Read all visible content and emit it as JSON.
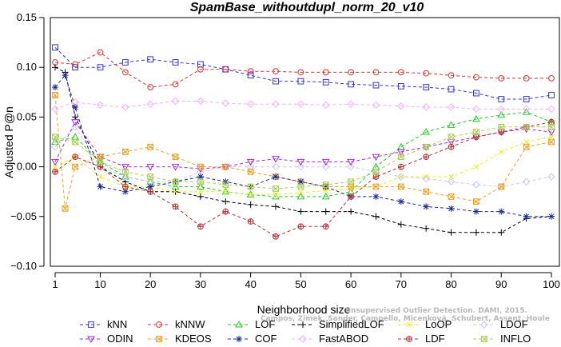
{
  "chart_data": {
    "type": "line",
    "title": "SpamBase_withoutdupl_norm_20_v10",
    "xlabel": "Neighborhood size",
    "ylabel": "Adjusted P@n",
    "xlim": [
      1,
      100
    ],
    "ylim": [
      -0.1,
      0.15
    ],
    "x_ticks": [
      1,
      10,
      20,
      30,
      40,
      50,
      60,
      70,
      80,
      90,
      100
    ],
    "y_ticks": [
      -0.1,
      -0.05,
      0.0,
      0.05,
      0.1,
      0.15
    ],
    "y_tick_labels": [
      "−0.10",
      "−0.05",
      "0.00",
      "0.05",
      "0.10",
      "0.15"
    ],
    "grid": false,
    "legend_position": "bottom",
    "watermark": [
      "Campos, Zimek, Sander, Campello, Micenková, Schubert, Assent, Houle",
      "Unsupervised Outlier Detection. DAMI, 2015."
    ],
    "series": [
      {
        "name": "kNN",
        "color": "#3333ee",
        "marker": "square",
        "x": [
          1,
          5,
          10,
          15,
          20,
          25,
          30,
          35,
          40,
          45,
          50,
          55,
          60,
          65,
          70,
          75,
          80,
          85,
          90,
          95,
          100
        ],
        "y": [
          0.12,
          0.1,
          0.1,
          0.105,
          0.108,
          0.105,
          0.103,
          0.098,
          0.092,
          0.086,
          0.086,
          0.085,
          0.083,
          0.082,
          0.081,
          0.08,
          0.078,
          0.074,
          0.068,
          0.068,
          0.072
        ]
      },
      {
        "name": "kNNW",
        "color": "#dd3333",
        "marker": "circle",
        "x": [
          1,
          5,
          10,
          15,
          20,
          25,
          30,
          35,
          40,
          45,
          50,
          55,
          60,
          65,
          70,
          75,
          80,
          85,
          90,
          95,
          100
        ],
        "y": [
          0.105,
          0.103,
          0.115,
          0.095,
          0.08,
          0.083,
          0.098,
          0.098,
          0.096,
          0.096,
          0.095,
          0.095,
          0.095,
          0.095,
          0.095,
          0.094,
          0.092,
          0.09,
          0.089,
          0.089,
          0.089
        ]
      },
      {
        "name": "LOF",
        "color": "#22cc22",
        "marker": "triangle-up",
        "x": [
          1,
          5,
          10,
          15,
          20,
          25,
          30,
          35,
          40,
          45,
          50,
          55,
          60,
          65,
          70,
          75,
          80,
          85,
          90,
          95,
          100
        ],
        "y": [
          0.025,
          0.03,
          0.005,
          -0.01,
          -0.015,
          -0.02,
          -0.02,
          -0.025,
          -0.028,
          -0.03,
          -0.03,
          -0.03,
          -0.025,
          0.0,
          0.02,
          0.035,
          0.042,
          0.048,
          0.052,
          0.055,
          0.045
        ]
      },
      {
        "name": "SimplifiedLOF",
        "color": "#000000",
        "marker": "plus",
        "x": [
          1,
          3,
          5,
          10,
          15,
          20,
          25,
          30,
          35,
          40,
          45,
          50,
          55,
          60,
          65,
          70,
          75,
          80,
          85,
          90,
          95,
          100
        ],
        "y": [
          0.1,
          0.095,
          0.05,
          0.0,
          -0.015,
          -0.025,
          -0.025,
          -0.03,
          -0.035,
          -0.038,
          -0.04,
          -0.045,
          -0.045,
          -0.045,
          -0.05,
          -0.058,
          -0.062,
          -0.066,
          -0.066,
          -0.066,
          -0.052,
          -0.05
        ]
      },
      {
        "name": "LoOP",
        "color": "#eeee22",
        "marker": "x",
        "x": [
          1,
          5,
          10,
          15,
          20,
          25,
          30,
          35,
          40,
          45,
          50,
          55,
          60,
          65,
          70,
          75,
          80,
          85,
          90,
          95,
          100
        ],
        "y": [
          0.0,
          0.01,
          -0.01,
          -0.02,
          -0.02,
          -0.025,
          -0.025,
          -0.025,
          -0.028,
          -0.028,
          -0.026,
          -0.024,
          -0.022,
          -0.02,
          -0.01,
          -0.01,
          -0.01,
          0.0,
          0.015,
          0.025,
          0.03
        ]
      },
      {
        "name": "LDOF",
        "color": "#c8c8f0",
        "marker": "diamond",
        "x": [
          1,
          5,
          10,
          15,
          20,
          25,
          30,
          35,
          40,
          45,
          50,
          55,
          60,
          65,
          70,
          75,
          80,
          85,
          90,
          95,
          100
        ],
        "y": [
          0.02,
          0.04,
          0.0,
          -0.01,
          -0.015,
          -0.015,
          -0.005,
          0.0,
          0.0,
          0.0,
          0.0,
          0.0,
          0.0,
          -0.005,
          -0.01,
          -0.012,
          -0.015,
          -0.018,
          -0.02,
          -0.015,
          -0.01
        ]
      },
      {
        "name": "ODIN",
        "color": "#aa22ee",
        "marker": "triangle-down",
        "x": [
          1,
          5,
          10,
          15,
          20,
          25,
          30,
          35,
          40,
          45,
          50,
          55,
          60,
          65,
          70,
          75,
          80,
          85,
          90,
          95,
          100
        ],
        "y": [
          0.005,
          0.045,
          0.01,
          0.0,
          0.0,
          0.0,
          -0.002,
          0.0,
          0.005,
          0.008,
          0.005,
          0.005,
          0.005,
          0.01,
          0.015,
          0.02,
          0.025,
          0.03,
          0.035,
          0.038,
          0.035
        ]
      },
      {
        "name": "KDEOS",
        "color": "#f0a020",
        "marker": "box-x",
        "x": [
          1,
          3,
          5,
          10,
          15,
          20,
          25,
          30,
          35,
          40,
          45,
          50,
          55,
          60,
          65,
          70,
          75,
          80,
          85,
          90,
          95,
          100
        ],
        "y": [
          0.072,
          -0.042,
          0.0,
          0.01,
          0.015,
          0.02,
          0.01,
          0.0,
          0.0,
          -0.005,
          -0.01,
          -0.015,
          -0.02,
          -0.02,
          -0.02,
          -0.02,
          -0.025,
          -0.03,
          -0.035,
          -0.02,
          0.02,
          0.025
        ]
      },
      {
        "name": "COF",
        "color": "#1a2a9a",
        "marker": "star",
        "x": [
          1,
          3,
          5,
          10,
          15,
          20,
          25,
          30,
          35,
          40,
          45,
          50,
          55,
          60,
          65,
          70,
          75,
          80,
          85,
          90,
          95,
          100
        ],
        "y": [
          0.08,
          0.092,
          0.06,
          -0.02,
          -0.025,
          -0.02,
          -0.015,
          -0.01,
          -0.015,
          -0.02,
          -0.01,
          -0.015,
          -0.02,
          -0.03,
          -0.03,
          -0.035,
          -0.04,
          -0.042,
          -0.045,
          -0.045,
          -0.05,
          -0.05
        ]
      },
      {
        "name": "FastABOD",
        "color": "#f4b0f4",
        "marker": "diamond",
        "x": [
          1,
          5,
          10,
          15,
          20,
          25,
          30,
          35,
          40,
          45,
          50,
          55,
          60,
          65,
          70,
          75,
          80,
          85,
          90,
          95,
          100
        ],
        "y": [
          0.058,
          0.065,
          0.062,
          0.06,
          0.063,
          0.066,
          0.066,
          0.064,
          0.063,
          0.063,
          0.063,
          0.062,
          0.063,
          0.062,
          0.061,
          0.06,
          0.06,
          0.058,
          0.058,
          0.058,
          0.058
        ]
      },
      {
        "name": "LDF",
        "color": "#b83030",
        "marker": "circle-plus",
        "x": [
          1,
          5,
          10,
          15,
          20,
          25,
          30,
          35,
          40,
          45,
          50,
          55,
          60,
          65,
          70,
          75,
          80,
          85,
          90,
          95,
          100
        ],
        "y": [
          -0.005,
          0.01,
          0.0,
          -0.02,
          -0.025,
          -0.04,
          -0.06,
          -0.045,
          -0.055,
          -0.07,
          -0.06,
          -0.06,
          -0.03,
          -0.01,
          0.0,
          0.01,
          0.02,
          0.03,
          0.035,
          0.04,
          0.045
        ]
      },
      {
        "name": "INFLO",
        "color": "#a8d050",
        "marker": "box-x",
        "x": [
          1,
          5,
          10,
          15,
          20,
          25,
          30,
          35,
          40,
          45,
          50,
          55,
          60,
          65,
          70,
          75,
          80,
          85,
          90,
          95,
          100
        ],
        "y": [
          0.03,
          0.025,
          0.005,
          -0.005,
          -0.01,
          -0.015,
          -0.015,
          -0.018,
          -0.02,
          -0.022,
          -0.02,
          -0.018,
          -0.015,
          -0.005,
          0.01,
          0.02,
          0.03,
          0.035,
          0.04,
          0.04,
          0.04
        ]
      }
    ]
  }
}
